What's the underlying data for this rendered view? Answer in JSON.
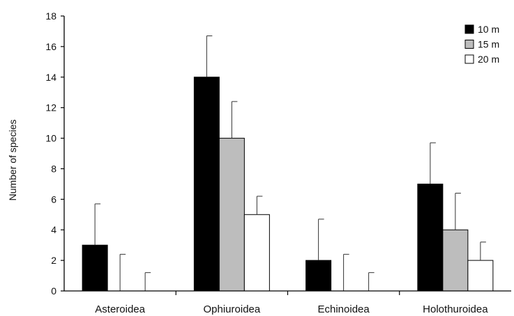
{
  "chart_data": {
    "type": "bar",
    "categories": [
      "Asteroidea",
      "Ophiuroidea",
      "Echinoidea",
      "Holothuroidea"
    ],
    "series": [
      {
        "name": "10 m",
        "color": "#000000",
        "values": [
          3,
          14,
          2,
          7
        ],
        "errors": [
          2.7,
          2.7,
          2.7,
          2.7
        ]
      },
      {
        "name": "15 m",
        "color": "#bdbdbd",
        "values": [
          0,
          10,
          0,
          4
        ],
        "errors": [
          2.4,
          2.4,
          2.4,
          2.4
        ]
      },
      {
        "name": "20 m",
        "color": "#ffffff",
        "values": [
          0,
          5,
          0,
          2
        ],
        "errors": [
          1.2,
          1.2,
          1.2,
          1.2
        ]
      }
    ],
    "ylabel": "Number of species",
    "xlabel": "",
    "ylim": [
      0,
      18
    ],
    "yticks": [
      0,
      2,
      4,
      6,
      8,
      10,
      12,
      14,
      16,
      18
    ],
    "legend_position": "top-right",
    "grid": false
  }
}
